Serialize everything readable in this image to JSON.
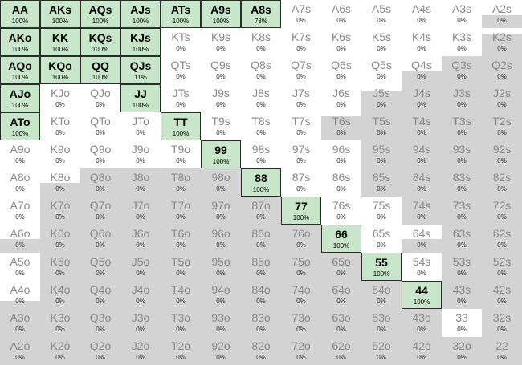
{
  "grid": {
    "rows": [
      [
        [
          "AA",
          "100%",
          1,
          1
        ],
        [
          "AKs",
          "100%",
          1,
          1
        ],
        [
          "AQs",
          "100%",
          1,
          1
        ],
        [
          "AJs",
          "100%",
          1,
          1
        ],
        [
          "ATs",
          "100%",
          1,
          1
        ],
        [
          "A9s",
          "100%",
          1,
          1
        ],
        [
          "A8s",
          "73%",
          1,
          1
        ],
        [
          "A7s",
          "0%",
          0,
          0
        ],
        [
          "A6s",
          "0%",
          0,
          0
        ],
        [
          "A5s",
          "0%",
          0,
          0
        ],
        [
          "A4s",
          "0%",
          0,
          0
        ],
        [
          "A3s",
          "0%",
          0,
          0
        ],
        [
          "A2s",
          "0%",
          0.45,
          0
        ]
      ],
      [
        [
          "AKo",
          "100%",
          1,
          1
        ],
        [
          "KK",
          "100%",
          1,
          1
        ],
        [
          "KQs",
          "100%",
          1,
          1
        ],
        [
          "KJs",
          "100%",
          1,
          1
        ],
        [
          "KTs",
          "0%",
          0,
          0
        ],
        [
          "K9s",
          "0%",
          0,
          0
        ],
        [
          "K8s",
          "0%",
          0,
          0
        ],
        [
          "K7s",
          "0%",
          0,
          0
        ],
        [
          "K6s",
          "0%",
          0,
          0
        ],
        [
          "K5s",
          "0%",
          0,
          0
        ],
        [
          "K4s",
          "0%",
          0,
          0
        ],
        [
          "K3s",
          "0%",
          0,
          0
        ],
        [
          "K2s",
          "0%",
          0.8,
          0
        ]
      ],
      [
        [
          "AQo",
          "100%",
          1,
          1
        ],
        [
          "KQo",
          "100%",
          1,
          1
        ],
        [
          "QQ",
          "100%",
          1,
          1
        ],
        [
          "QJs",
          "11%",
          0.11,
          1
        ],
        [
          "QTs",
          "0%",
          0,
          0
        ],
        [
          "Q9s",
          "0%",
          0,
          0
        ],
        [
          "Q8s",
          "0%",
          0,
          0
        ],
        [
          "Q7s",
          "0%",
          0,
          0
        ],
        [
          "Q6s",
          "0%",
          0,
          0
        ],
        [
          "Q5s",
          "0%",
          0,
          0
        ],
        [
          "Q4s",
          "0%",
          0.5,
          0
        ],
        [
          "Q3s",
          "0%",
          1,
          0
        ],
        [
          "Q2s",
          "0%",
          1,
          0
        ]
      ],
      [
        [
          "AJo",
          "100%",
          1,
          1
        ],
        [
          "KJo",
          "0%",
          0,
          0
        ],
        [
          "QJo",
          "0%",
          0,
          0
        ],
        [
          "JJ",
          "100%",
          1,
          1
        ],
        [
          "JTs",
          "0%",
          0,
          0
        ],
        [
          "J9s",
          "0%",
          0,
          0
        ],
        [
          "J8s",
          "0%",
          0,
          0
        ],
        [
          "J7s",
          "0%",
          0,
          0
        ],
        [
          "J6s",
          "0%",
          0,
          0
        ],
        [
          "J5s",
          "0%",
          0.75,
          0
        ],
        [
          "J4s",
          "0%",
          1,
          0
        ],
        [
          "J3s",
          "0%",
          1,
          0
        ],
        [
          "J2s",
          "0%",
          1,
          0
        ]
      ],
      [
        [
          "ATo",
          "100%",
          1,
          1
        ],
        [
          "KTo",
          "0%",
          0,
          0
        ],
        [
          "QTo",
          "0%",
          0,
          0
        ],
        [
          "JTo",
          "0%",
          0,
          0
        ],
        [
          "TT",
          "100%",
          1,
          1
        ],
        [
          "T9s",
          "0%",
          0,
          0
        ],
        [
          "T8s",
          "0%",
          0,
          0
        ],
        [
          "T7s",
          "0%",
          0,
          0
        ],
        [
          "T6s",
          "0%",
          0.9,
          0
        ],
        [
          "T5s",
          "0%",
          1,
          0
        ],
        [
          "T4s",
          "0%",
          1,
          0
        ],
        [
          "T3s",
          "0%",
          1,
          0
        ],
        [
          "T2s",
          "0%",
          1,
          0
        ]
      ],
      [
        [
          "A9o",
          "0%",
          0,
          0
        ],
        [
          "K9o",
          "0%",
          0,
          0
        ],
        [
          "Q9o",
          "0%",
          0,
          0
        ],
        [
          "J9o",
          "0%",
          0,
          0
        ],
        [
          "T9o",
          "0%",
          0,
          0
        ],
        [
          "99",
          "100%",
          1,
          1
        ],
        [
          "98s",
          "0%",
          0,
          0
        ],
        [
          "97s",
          "0%",
          0,
          0
        ],
        [
          "96s",
          "0%",
          0,
          0
        ],
        [
          "95s",
          "0%",
          1,
          0
        ],
        [
          "94s",
          "0%",
          1,
          0
        ],
        [
          "93s",
          "0%",
          1,
          0
        ],
        [
          "92s",
          "0%",
          1,
          0
        ]
      ],
      [
        [
          "A8o",
          "0%",
          0,
          0
        ],
        [
          "K8o",
          "0%",
          0.5,
          0
        ],
        [
          "Q8o",
          "0%",
          1,
          0
        ],
        [
          "J8o",
          "0%",
          1,
          0
        ],
        [
          "T8o",
          "0%",
          1,
          0
        ],
        [
          "98o",
          "0%",
          1,
          0
        ],
        [
          "88",
          "100%",
          1,
          1
        ],
        [
          "87s",
          "0%",
          0,
          0
        ],
        [
          "86s",
          "0%",
          0,
          0
        ],
        [
          "85s",
          "0%",
          1,
          0
        ],
        [
          "84s",
          "0%",
          1,
          0
        ],
        [
          "83s",
          "0%",
          1,
          0
        ],
        [
          "82s",
          "0%",
          1,
          0
        ]
      ],
      [
        [
          "A7o",
          "0%",
          0,
          0
        ],
        [
          "K7o",
          "0%",
          1,
          0
        ],
        [
          "Q7o",
          "0%",
          1,
          0
        ],
        [
          "J7o",
          "0%",
          1,
          0
        ],
        [
          "T7o",
          "0%",
          1,
          0
        ],
        [
          "97o",
          "0%",
          1,
          0
        ],
        [
          "87o",
          "0%",
          1,
          0
        ],
        [
          "77",
          "100%",
          1,
          1
        ],
        [
          "76s",
          "0%",
          0,
          0
        ],
        [
          "75s",
          "0%",
          0,
          0
        ],
        [
          "74s",
          "0%",
          1,
          0
        ],
        [
          "73s",
          "0%",
          1,
          0
        ],
        [
          "72s",
          "0%",
          1,
          0
        ]
      ],
      [
        [
          "A6o",
          "0%",
          0.5,
          0
        ],
        [
          "K6o",
          "0%",
          1,
          0
        ],
        [
          "Q6o",
          "0%",
          1,
          0
        ],
        [
          "J6o",
          "0%",
          1,
          0
        ],
        [
          "T6o",
          "0%",
          1,
          0
        ],
        [
          "96o",
          "0%",
          1,
          0
        ],
        [
          "86o",
          "0%",
          1,
          0
        ],
        [
          "76o",
          "0%",
          1,
          0
        ],
        [
          "66",
          "100%",
          1,
          1
        ],
        [
          "65s",
          "0%",
          0,
          0
        ],
        [
          "64s",
          "0%",
          0.5,
          0
        ],
        [
          "63s",
          "0%",
          1,
          0
        ],
        [
          "62s",
          "0%",
          1,
          0
        ]
      ],
      [
        [
          "A5o",
          "0%",
          0,
          0
        ],
        [
          "K5o",
          "0%",
          1,
          0
        ],
        [
          "Q5o",
          "0%",
          1,
          0
        ],
        [
          "J5o",
          "0%",
          1,
          0
        ],
        [
          "T5o",
          "0%",
          1,
          0
        ],
        [
          "95o",
          "0%",
          1,
          0
        ],
        [
          "85o",
          "0%",
          1,
          0
        ],
        [
          "75o",
          "0%",
          1,
          0
        ],
        [
          "65o",
          "0%",
          1,
          0
        ],
        [
          "55",
          "100%",
          1,
          1
        ],
        [
          "54s",
          "0%",
          0,
          0
        ],
        [
          "53s",
          "0%",
          1,
          0
        ],
        [
          "52s",
          "0%",
          1,
          0
        ]
      ],
      [
        [
          "A4o",
          "0%",
          0.3,
          0
        ],
        [
          "K4o",
          "0%",
          1,
          0
        ],
        [
          "Q4o",
          "0%",
          1,
          0
        ],
        [
          "J4o",
          "0%",
          1,
          0
        ],
        [
          "T4o",
          "0%",
          1,
          0
        ],
        [
          "94o",
          "0%",
          1,
          0
        ],
        [
          "84o",
          "0%",
          1,
          0
        ],
        [
          "74o",
          "0%",
          1,
          0
        ],
        [
          "64o",
          "0%",
          1,
          0
        ],
        [
          "54o",
          "0%",
          1,
          0
        ],
        [
          "44",
          "100%",
          1,
          1
        ],
        [
          "43s",
          "0%",
          1,
          0
        ],
        [
          "42s",
          "0%",
          1,
          0
        ]
      ],
      [
        [
          "A3o",
          "0%",
          1,
          0
        ],
        [
          "K3o",
          "0%",
          1,
          0
        ],
        [
          "Q3o",
          "0%",
          1,
          0
        ],
        [
          "J3o",
          "0%",
          1,
          0
        ],
        [
          "T3o",
          "0%",
          1,
          0
        ],
        [
          "93o",
          "0%",
          1,
          0
        ],
        [
          "83o",
          "0%",
          1,
          0
        ],
        [
          "73o",
          "0%",
          1,
          0
        ],
        [
          "63o",
          "0%",
          1,
          0
        ],
        [
          "53o",
          "0%",
          1,
          0
        ],
        [
          "43o",
          "0%",
          1,
          0
        ],
        [
          "33",
          "0%",
          0,
          0
        ],
        [
          "32s",
          "0%",
          1,
          0
        ]
      ],
      [
        [
          "A2o",
          "0%",
          1,
          0
        ],
        [
          "K2o",
          "0%",
          1,
          0
        ],
        [
          "Q2o",
          "0%",
          1,
          0
        ],
        [
          "J2o",
          "0%",
          1,
          0
        ],
        [
          "T2o",
          "0%",
          1,
          0
        ],
        [
          "92o",
          "0%",
          1,
          0
        ],
        [
          "82o",
          "0%",
          1,
          0
        ],
        [
          "72o",
          "0%",
          1,
          0
        ],
        [
          "62o",
          "0%",
          1,
          0
        ],
        [
          "52o",
          "0%",
          1,
          0
        ],
        [
          "42o",
          "0%",
          1,
          0
        ],
        [
          "32o",
          "0%",
          1,
          0
        ],
        [
          "22",
          "0%",
          1,
          0
        ]
      ]
    ]
  }
}
